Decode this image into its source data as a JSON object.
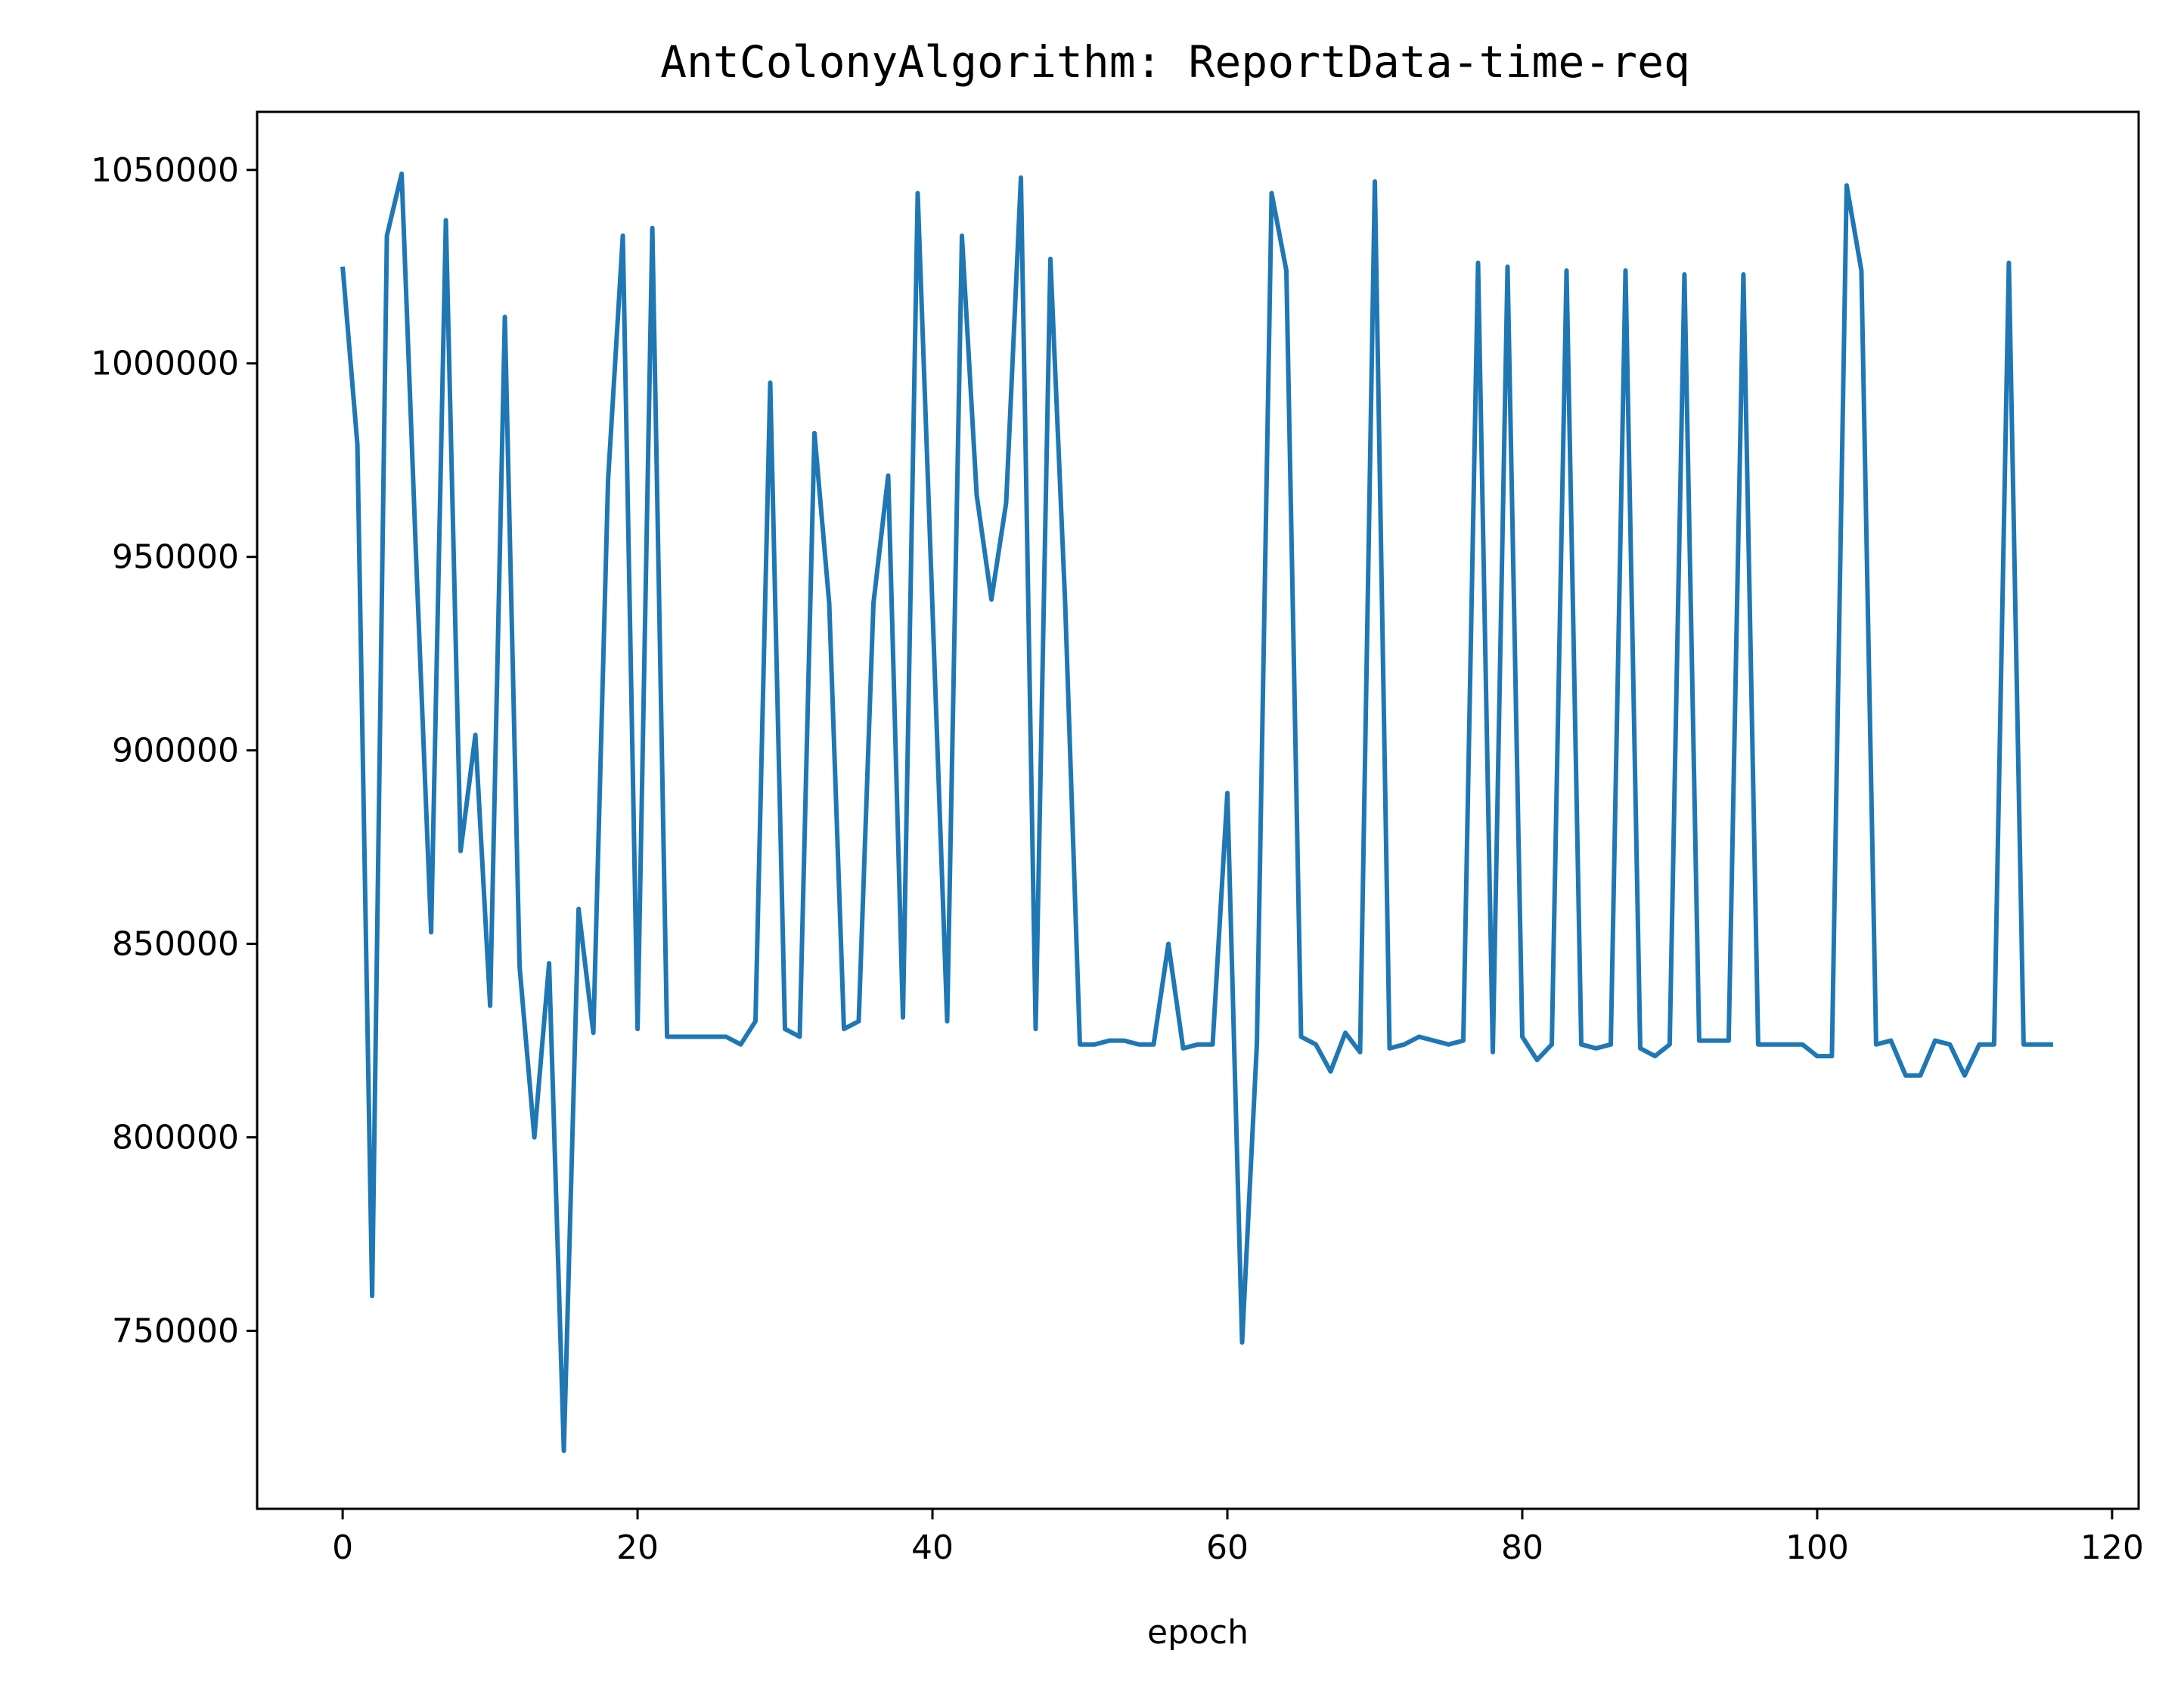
{
  "chart_data": {
    "type": "line",
    "title": "AntColonyAlgorithm: ReportData-time-req",
    "xlabel": "epoch",
    "ylabel": "",
    "xlim": [
      -5.8,
      121.8
    ],
    "ylim": [
      704000,
      1065000
    ],
    "xticks": [
      0,
      20,
      40,
      60,
      80,
      100,
      120
    ],
    "yticks": [
      750000,
      800000,
      850000,
      900000,
      950000,
      1000000,
      1050000
    ],
    "grid": false,
    "legend": "none",
    "series": [
      {
        "color": "#1f77b4",
        "x": [
          0,
          1,
          2,
          3,
          4,
          5,
          6,
          7,
          8,
          9,
          10,
          11,
          12,
          13,
          14,
          15,
          16,
          17,
          18,
          19,
          20,
          21,
          22,
          23,
          24,
          25,
          26,
          27,
          28,
          29,
          30,
          31,
          32,
          33,
          34,
          35,
          36,
          37,
          38,
          39,
          40,
          41,
          42,
          43,
          44,
          45,
          46,
          47,
          48,
          49,
          50,
          51,
          52,
          53,
          54,
          55,
          56,
          57,
          58,
          59,
          60,
          61,
          62,
          63,
          64,
          65,
          66,
          67,
          68,
          69,
          70,
          71,
          72,
          73,
          74,
          75,
          76,
          77,
          78,
          79,
          80,
          81,
          82,
          83,
          84,
          85,
          86,
          87,
          88,
          89,
          90,
          91,
          92,
          93,
          94,
          95,
          96,
          97,
          98,
          99,
          100,
          101,
          102,
          103,
          104,
          105,
          106,
          107,
          108,
          109,
          110,
          111,
          112,
          113,
          114,
          115,
          116
        ],
        "values": [
          1025000,
          979000,
          759000,
          1033000,
          1049000,
          948000,
          853000,
          1037000,
          874000,
          904000,
          834000,
          1012000,
          844000,
          800000,
          845000,
          719000,
          859000,
          827000,
          970000,
          1033000,
          828000,
          1035000,
          826000,
          826000,
          826000,
          826000,
          826000,
          824000,
          830000,
          995000,
          828000,
          826000,
          982000,
          938000,
          828000,
          830000,
          938000,
          971000,
          831000,
          1044000,
          937000,
          830000,
          1033000,
          966000,
          939000,
          964000,
          1048000,
          828000,
          1027000,
          938000,
          824000,
          824000,
          825000,
          825000,
          824000,
          824000,
          850000,
          823000,
          824000,
          824000,
          889000,
          747000,
          824000,
          1044000,
          1024000,
          826000,
          824000,
          817000,
          827000,
          822000,
          1047000,
          823000,
          824000,
          826000,
          825000,
          824000,
          825000,
          1026000,
          822000,
          1025000,
          826000,
          820000,
          824000,
          1024000,
          824000,
          823000,
          824000,
          1024000,
          823000,
          821000,
          824000,
          1023000,
          825000,
          825000,
          825000,
          1023000,
          824000,
          824000,
          824000,
          824000,
          821000,
          821000,
          1046000,
          1024000,
          824000,
          825000,
          816000,
          816000,
          825000,
          824000,
          816000,
          824000,
          824000,
          1026000,
          824000,
          824000,
          824000
        ]
      }
    ]
  }
}
